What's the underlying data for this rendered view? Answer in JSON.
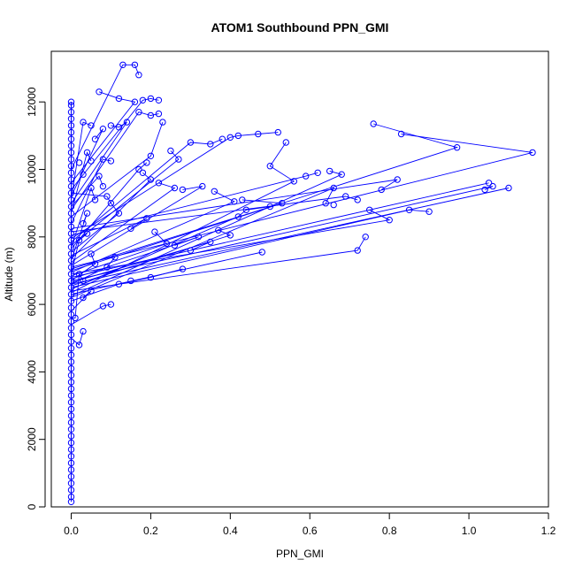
{
  "chart_data": {
    "type": "scatter",
    "title": "ATOM1 Southbound PPN_GMI",
    "xlabel": "PPN_GMI",
    "ylabel": "Altitude (m)",
    "xlim": [
      -0.05,
      1.2
    ],
    "ylim": [
      0,
      13500
    ],
    "xticks": [
      "0.0",
      "0.2",
      "0.4",
      "0.6",
      "0.8",
      "1.0",
      "1.2"
    ],
    "yticks": [
      "0",
      "2000",
      "4000",
      "6000",
      "8000",
      "10000",
      "12000"
    ],
    "grid": false,
    "series_color": "#0000ff",
    "points": [
      [
        0.0,
        150
      ],
      [
        0.0,
        300
      ],
      [
        0.0,
        500
      ],
      [
        0.0,
        700
      ],
      [
        0.0,
        900
      ],
      [
        0.0,
        1100
      ],
      [
        0.0,
        1300
      ],
      [
        0.0,
        1500
      ],
      [
        0.0,
        1700
      ],
      [
        0.0,
        1900
      ],
      [
        0.0,
        2100
      ],
      [
        0.0,
        2300
      ],
      [
        0.0,
        2500
      ],
      [
        0.0,
        2700
      ],
      [
        0.0,
        2900
      ],
      [
        0.0,
        3100
      ],
      [
        0.0,
        3300
      ],
      [
        0.0,
        3500
      ],
      [
        0.0,
        3700
      ],
      [
        0.0,
        3900
      ],
      [
        0.0,
        4100
      ],
      [
        0.0,
        4300
      ],
      [
        0.0,
        4500
      ],
      [
        0.0,
        4700
      ],
      [
        0.0,
        4900
      ],
      [
        0.0,
        5100
      ],
      [
        0.0,
        5300
      ],
      [
        0.0,
        5500
      ],
      [
        0.0,
        5700
      ],
      [
        0.0,
        5900
      ],
      [
        0.0,
        6100
      ],
      [
        0.0,
        6300
      ],
      [
        0.0,
        6500
      ],
      [
        0.0,
        6700
      ],
      [
        0.0,
        6900
      ],
      [
        0.0,
        7100
      ],
      [
        0.0,
        7300
      ],
      [
        0.0,
        7500
      ],
      [
        0.0,
        7700
      ],
      [
        0.0,
        7900
      ],
      [
        0.0,
        8100
      ],
      [
        0.0,
        8300
      ],
      [
        0.0,
        8500
      ],
      [
        0.0,
        8700
      ],
      [
        0.0,
        8900
      ],
      [
        0.0,
        9100
      ],
      [
        0.0,
        9300
      ],
      [
        0.0,
        9500
      ],
      [
        0.0,
        9700
      ],
      [
        0.0,
        9900
      ],
      [
        0.0,
        10100
      ],
      [
        0.0,
        10300
      ],
      [
        0.0,
        10500
      ],
      [
        0.0,
        10700
      ],
      [
        0.0,
        10900
      ],
      [
        0.0,
        11100
      ],
      [
        0.0,
        11300
      ],
      [
        0.0,
        11500
      ],
      [
        0.0,
        11700
      ],
      [
        0.0,
        11900
      ],
      [
        0.0,
        12000
      ],
      [
        0.02,
        4800
      ],
      [
        0.03,
        5200
      ],
      [
        0.01,
        5600
      ],
      [
        0.03,
        6200
      ],
      [
        0.05,
        6400
      ],
      [
        0.08,
        5950
      ],
      [
        0.1,
        6000
      ],
      [
        0.12,
        6600
      ],
      [
        0.15,
        6700
      ],
      [
        0.2,
        6800
      ],
      [
        0.28,
        7050
      ],
      [
        0.3,
        7600
      ],
      [
        0.35,
        7850
      ],
      [
        0.32,
        8000
      ],
      [
        0.37,
        8200
      ],
      [
        0.4,
        8050
      ],
      [
        0.42,
        8600
      ],
      [
        0.44,
        8800
      ],
      [
        0.5,
        8900
      ],
      [
        0.53,
        9000
      ],
      [
        0.41,
        9050
      ],
      [
        0.43,
        9100
      ],
      [
        0.36,
        9350
      ],
      [
        0.33,
        9500
      ],
      [
        0.28,
        9400
      ],
      [
        0.26,
        9450
      ],
      [
        0.22,
        9600
      ],
      [
        0.2,
        9700
      ],
      [
        0.18,
        9900
      ],
      [
        0.17,
        10000
      ],
      [
        0.19,
        10200
      ],
      [
        0.2,
        10400
      ],
      [
        0.27,
        10300
      ],
      [
        0.25,
        10550
      ],
      [
        0.3,
        10800
      ],
      [
        0.35,
        10750
      ],
      [
        0.38,
        10900
      ],
      [
        0.4,
        10950
      ],
      [
        0.42,
        11000
      ],
      [
        0.47,
        11050
      ],
      [
        0.52,
        11100
      ],
      [
        0.54,
        10800
      ],
      [
        0.5,
        10100
      ],
      [
        0.56,
        9650
      ],
      [
        0.59,
        9800
      ],
      [
        0.62,
        9900
      ],
      [
        0.65,
        9950
      ],
      [
        0.68,
        9850
      ],
      [
        0.66,
        9450
      ],
      [
        0.64,
        9000
      ],
      [
        0.66,
        8950
      ],
      [
        0.69,
        9200
      ],
      [
        0.72,
        9100
      ],
      [
        0.75,
        8800
      ],
      [
        0.8,
        8500
      ],
      [
        0.85,
        8800
      ],
      [
        0.9,
        8750
      ],
      [
        0.97,
        10650
      ],
      [
        1.16,
        10500
      ],
      [
        1.05,
        9600
      ],
      [
        1.04,
        9400
      ],
      [
        1.06,
        9500
      ],
      [
        1.1,
        9450
      ],
      [
        0.82,
        9700
      ],
      [
        0.78,
        9400
      ],
      [
        0.74,
        8000
      ],
      [
        0.72,
        7600
      ],
      [
        0.48,
        7550
      ],
      [
        0.26,
        7750
      ],
      [
        0.24,
        7800
      ],
      [
        0.21,
        8150
      ],
      [
        0.19,
        8550
      ],
      [
        0.15,
        8250
      ],
      [
        0.12,
        8700
      ],
      [
        0.1,
        9000
      ],
      [
        0.09,
        9200
      ],
      [
        0.08,
        9500
      ],
      [
        0.07,
        9800
      ],
      [
        0.05,
        10250
      ],
      [
        0.04,
        10500
      ],
      [
        0.06,
        10900
      ],
      [
        0.08,
        11200
      ],
      [
        0.1,
        11300
      ],
      [
        0.12,
        11250
      ],
      [
        0.14,
        11400
      ],
      [
        0.17,
        11700
      ],
      [
        0.2,
        11600
      ],
      [
        0.22,
        11650
      ],
      [
        0.23,
        11400
      ],
      [
        0.18,
        12050
      ],
      [
        0.2,
        12100
      ],
      [
        0.22,
        12050
      ],
      [
        0.16,
        12000
      ],
      [
        0.12,
        12100
      ],
      [
        0.07,
        12300
      ],
      [
        0.13,
        13100
      ],
      [
        0.16,
        13100
      ],
      [
        0.17,
        12800
      ],
      [
        0.03,
        11400
      ],
      [
        0.05,
        11300
      ],
      [
        0.76,
        11350
      ],
      [
        0.83,
        11050
      ],
      [
        0.08,
        10300
      ],
      [
        0.1,
        10250
      ],
      [
        0.02,
        10200
      ],
      [
        0.03,
        9850
      ],
      [
        0.05,
        9450
      ],
      [
        0.06,
        9100
      ],
      [
        0.04,
        8700
      ],
      [
        0.03,
        8400
      ],
      [
        0.04,
        8100
      ],
      [
        0.02,
        7900
      ],
      [
        0.05,
        7500
      ],
      [
        0.06,
        7200
      ],
      [
        0.09,
        7100
      ],
      [
        0.11,
        7400
      ],
      [
        0.02,
        6900
      ],
      [
        0.03,
        6700
      ]
    ],
    "segments": [
      [
        [
          0.0,
          6100
        ],
        [
          0.12,
          6600
        ],
        [
          0.2,
          6800
        ],
        [
          0.28,
          7050
        ]
      ],
      [
        [
          0.0,
          6300
        ],
        [
          0.48,
          7550
        ]
      ],
      [
        [
          0.0,
          6400
        ],
        [
          0.72,
          7600
        ],
        [
          0.74,
          8000
        ]
      ],
      [
        [
          0.0,
          6500
        ],
        [
          0.85,
          8800
        ],
        [
          0.9,
          8750
        ]
      ],
      [
        [
          0.0,
          6600
        ],
        [
          1.1,
          9450
        ]
      ],
      [
        [
          0.0,
          6700
        ],
        [
          1.06,
          9500
        ],
        [
          1.04,
          9400
        ]
      ],
      [
        [
          0.0,
          6800
        ],
        [
          1.05,
          9600
        ]
      ],
      [
        [
          0.0,
          6900
        ],
        [
          0.8,
          8500
        ],
        [
          0.75,
          8800
        ]
      ],
      [
        [
          0.0,
          7000
        ],
        [
          0.97,
          10650
        ],
        [
          0.76,
          11350
        ]
      ],
      [
        [
          0.0,
          7100
        ],
        [
          1.16,
          10500
        ],
        [
          0.83,
          11050
        ]
      ],
      [
        [
          0.0,
          6200
        ],
        [
          0.66,
          9450
        ],
        [
          0.64,
          9000
        ]
      ],
      [
        [
          0.0,
          6250
        ],
        [
          0.68,
          9850
        ],
        [
          0.65,
          9950
        ]
      ],
      [
        [
          0.0,
          6350
        ],
        [
          0.56,
          9650
        ],
        [
          0.5,
          10100
        ],
        [
          0.54,
          10800
        ]
      ],
      [
        [
          0.0,
          6450
        ],
        [
          0.42,
          8600
        ],
        [
          0.44,
          8800
        ],
        [
          0.5,
          8900
        ]
      ],
      [
        [
          0.0,
          6550
        ],
        [
          0.4,
          8050
        ],
        [
          0.37,
          8200
        ]
      ],
      [
        [
          0.0,
          6650
        ],
        [
          0.35,
          7850
        ],
        [
          0.3,
          7600
        ]
      ],
      [
        [
          0.0,
          6750
        ],
        [
          0.32,
          8000
        ],
        [
          0.26,
          7750
        ]
      ],
      [
        [
          0.0,
          6850
        ],
        [
          0.24,
          7800
        ],
        [
          0.21,
          8150
        ]
      ],
      [
        [
          0.0,
          6950
        ],
        [
          0.41,
          9050
        ],
        [
          0.36,
          9350
        ]
      ],
      [
        [
          0.0,
          7050
        ],
        [
          0.53,
          9000
        ],
        [
          0.43,
          9100
        ]
      ],
      [
        [
          0.0,
          7150
        ],
        [
          0.33,
          9500
        ],
        [
          0.28,
          9400
        ]
      ],
      [
        [
          0.0,
          7250
        ],
        [
          0.26,
          9450
        ],
        [
          0.22,
          9600
        ]
      ],
      [
        [
          0.0,
          7350
        ],
        [
          0.2,
          9700
        ],
        [
          0.18,
          9900
        ]
      ],
      [
        [
          0.0,
          7450
        ],
        [
          0.19,
          8550
        ],
        [
          0.15,
          8250
        ]
      ],
      [
        [
          0.0,
          7550
        ],
        [
          0.12,
          8700
        ],
        [
          0.1,
          9000
        ]
      ],
      [
        [
          0.0,
          7650
        ],
        [
          0.17,
          10000
        ],
        [
          0.19,
          10200
        ]
      ],
      [
        [
          0.0,
          7750
        ],
        [
          0.27,
          10300
        ],
        [
          0.25,
          10550
        ]
      ],
      [
        [
          0.0,
          7850
        ],
        [
          0.3,
          10800
        ],
        [
          0.35,
          10750
        ],
        [
          0.38,
          10900
        ]
      ],
      [
        [
          0.0,
          7950
        ],
        [
          0.4,
          10950
        ],
        [
          0.42,
          11000
        ],
        [
          0.47,
          11050
        ],
        [
          0.52,
          11100
        ]
      ],
      [
        [
          0.0,
          8050
        ],
        [
          0.59,
          9800
        ],
        [
          0.62,
          9900
        ]
      ],
      [
        [
          0.0,
          8150
        ],
        [
          0.69,
          9200
        ],
        [
          0.72,
          9100
        ]
      ],
      [
        [
          0.0,
          8250
        ],
        [
          0.82,
          9700
        ],
        [
          0.78,
          9400
        ]
      ],
      [
        [
          0.0,
          8600
        ],
        [
          0.2,
          10400
        ],
        [
          0.23,
          11400
        ]
      ],
      [
        [
          0.0,
          8800
        ],
        [
          0.17,
          11700
        ],
        [
          0.2,
          11600
        ],
        [
          0.22,
          11650
        ]
      ],
      [
        [
          0.0,
          9000
        ],
        [
          0.14,
          11400
        ],
        [
          0.12,
          11250
        ],
        [
          0.1,
          11300
        ]
      ],
      [
        [
          0.0,
          9200
        ],
        [
          0.08,
          11200
        ],
        [
          0.06,
          10900
        ]
      ],
      [
        [
          0.0,
          9400
        ],
        [
          0.18,
          12050
        ],
        [
          0.2,
          12100
        ],
        [
          0.22,
          12050
        ]
      ],
      [
        [
          0.0,
          9600
        ],
        [
          0.16,
          12000
        ],
        [
          0.12,
          12100
        ],
        [
          0.07,
          12300
        ]
      ],
      [
        [
          0.0,
          10000
        ],
        [
          0.13,
          13100
        ],
        [
          0.16,
          13100
        ],
        [
          0.17,
          12800
        ]
      ],
      [
        [
          0.0,
          5000
        ],
        [
          0.02,
          4800
        ],
        [
          0.03,
          5200
        ]
      ],
      [
        [
          0.0,
          5400
        ],
        [
          0.08,
          5950
        ],
        [
          0.1,
          6000
        ]
      ],
      [
        [
          0.0,
          5800
        ],
        [
          0.05,
          6400
        ],
        [
          0.03,
          6200
        ]
      ],
      [
        [
          0.0,
          8400
        ],
        [
          0.08,
          10300
        ],
        [
          0.1,
          10250
        ]
      ],
      [
        [
          0.0,
          8700
        ],
        [
          0.04,
          10500
        ],
        [
          0.05,
          10250
        ]
      ],
      [
        [
          0.0,
          9100
        ],
        [
          0.03,
          11400
        ],
        [
          0.05,
          11300
        ]
      ],
      [
        [
          0.0,
          7700
        ],
        [
          0.05,
          9450
        ],
        [
          0.06,
          9100
        ]
      ],
      [
        [
          0.0,
          7300
        ],
        [
          0.04,
          8700
        ],
        [
          0.03,
          8400
        ]
      ],
      [
        [
          0.0,
          6600
        ],
        [
          0.09,
          7100
        ],
        [
          0.11,
          7400
        ]
      ],
      [
        [
          0.0,
          6700
        ],
        [
          0.06,
          7200
        ],
        [
          0.05,
          7500
        ]
      ],
      [
        [
          0.0,
          6900
        ],
        [
          0.02,
          7900
        ],
        [
          0.04,
          8100
        ]
      ],
      [
        [
          0.0,
          8900
        ],
        [
          0.07,
          9800
        ],
        [
          0.08,
          9500
        ]
      ],
      [
        [
          0.0,
          9300
        ],
        [
          0.09,
          9200
        ],
        [
          0.1,
          9000
        ]
      ],
      [
        [
          0.0,
          5600
        ],
        [
          0.01,
          5600
        ],
        [
          0.02,
          6900
        ],
        [
          0.03,
          6700
        ]
      ]
    ]
  }
}
